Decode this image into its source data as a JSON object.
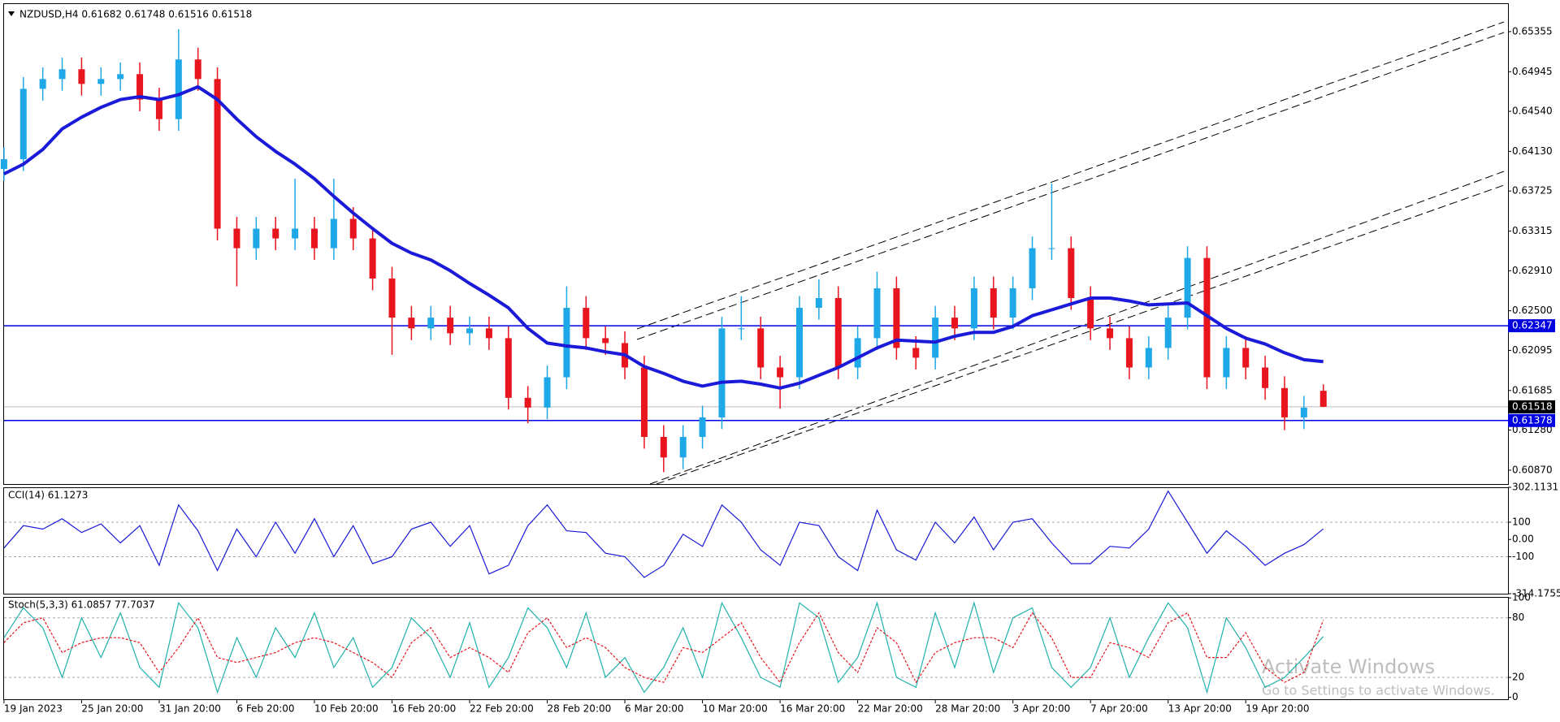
{
  "chart_data": [
    {
      "type": "candlestick",
      "title": "NZDUSD,H4  0.61682 0.61748 0.61516 0.61518",
      "categories": [
        "19 Jan 2023",
        null,
        null,
        null,
        "25 Jan 20:00",
        null,
        null,
        null,
        "31 Jan 20:00",
        null,
        null,
        null,
        "6 Feb 20:00",
        null,
        null,
        null,
        "10 Feb 20:00",
        null,
        null,
        null,
        "16 Feb 20:00",
        null,
        null,
        null,
        "22 Feb 20:00",
        null,
        null,
        null,
        "28 Feb 20:00",
        null,
        null,
        null,
        "6 Mar 20:00",
        null,
        null,
        null,
        "10 Mar 20:00",
        null,
        null,
        null,
        "16 Mar 20:00",
        null,
        null,
        null,
        "22 Mar 20:00",
        null,
        null,
        null,
        "28 Mar 20:00",
        null,
        null,
        null,
        "3 Apr 20:00",
        null,
        null,
        null,
        "7 Apr 20:00",
        null,
        null,
        null,
        "13 Apr 20:00",
        null,
        null,
        null,
        "19 Apr 20:00",
        null,
        null,
        null,
        null
      ],
      "open": [
        0.6395,
        0.6405,
        0.6477,
        0.6487,
        0.6497,
        0.6482,
        0.6487,
        0.6492,
        0.6466,
        0.6446,
        0.6507,
        0.6487,
        0.6334,
        0.6314,
        0.6334,
        0.6324,
        0.6334,
        0.6314,
        0.6344,
        0.6324,
        0.6283,
        0.6243,
        0.6232,
        0.6243,
        0.6227,
        0.6232,
        0.6222,
        0.6161,
        0.6151,
        0.6182,
        0.6253,
        0.6222,
        0.6217,
        0.6192,
        0.6121,
        0.61,
        0.6121,
        0.6141,
        0.6232,
        0.6232,
        0.6192,
        0.6182,
        0.6253,
        0.6263,
        0.6192,
        0.6222,
        0.6273,
        0.6212,
        0.6202,
        0.6243,
        0.6232,
        0.6273,
        0.6243,
        0.6273,
        0.6314,
        0.6314,
        0.6263,
        0.6232,
        0.6222,
        0.6192,
        0.6212,
        0.6243,
        0.6304,
        0.6182,
        0.6212,
        0.6192,
        0.6171,
        0.6141,
        0.61682
      ],
      "high": [
        0.6417,
        0.6489,
        0.6499,
        0.6509,
        0.6509,
        0.6499,
        0.6504,
        0.6504,
        0.6478,
        0.6538,
        0.6519,
        0.6499,
        0.6346,
        0.6346,
        0.6346,
        0.6385,
        0.6346,
        0.6385,
        0.6356,
        0.6336,
        0.6295,
        0.6255,
        0.6255,
        0.6255,
        0.6244,
        0.6244,
        0.6234,
        0.6173,
        0.6194,
        0.6275,
        0.6265,
        0.6234,
        0.6229,
        0.6204,
        0.6133,
        0.6133,
        0.6153,
        0.6244,
        0.6265,
        0.6244,
        0.6204,
        0.6265,
        0.6282,
        0.6275,
        0.6234,
        0.629,
        0.6285,
        0.6224,
        0.6255,
        0.6255,
        0.6285,
        0.6285,
        0.6285,
        0.6326,
        0.638,
        0.6326,
        0.6275,
        0.6244,
        0.6234,
        0.6224,
        0.6255,
        0.6316,
        0.6316,
        0.6224,
        0.6224,
        0.6204,
        0.6183,
        0.6163,
        0.61748
      ],
      "low": [
        0.6383,
        0.6393,
        0.6465,
        0.6475,
        0.647,
        0.647,
        0.6475,
        0.6454,
        0.6434,
        0.6434,
        0.6475,
        0.6322,
        0.6275,
        0.6302,
        0.6312,
        0.6312,
        0.6302,
        0.6302,
        0.6312,
        0.6271,
        0.6205,
        0.622,
        0.622,
        0.6215,
        0.6215,
        0.621,
        0.6149,
        0.6135,
        0.6139,
        0.617,
        0.621,
        0.6205,
        0.618,
        0.6109,
        0.6085,
        0.6088,
        0.6109,
        0.6129,
        0.622,
        0.618,
        0.615,
        0.617,
        0.6241,
        0.618,
        0.618,
        0.621,
        0.62,
        0.619,
        0.619,
        0.622,
        0.622,
        0.6231,
        0.6231,
        0.6261,
        0.6302,
        0.6251,
        0.622,
        0.621,
        0.618,
        0.618,
        0.62,
        0.6231,
        0.617,
        0.617,
        0.618,
        0.6159,
        0.6128,
        0.6129,
        0.61516
      ],
      "close": [
        0.6405,
        0.6477,
        0.6487,
        0.6497,
        0.6482,
        0.6487,
        0.6492,
        0.6466,
        0.6446,
        0.6507,
        0.6487,
        0.6334,
        0.6314,
        0.6334,
        0.6324,
        0.6334,
        0.6314,
        0.6344,
        0.6324,
        0.6283,
        0.6243,
        0.6232,
        0.6243,
        0.6227,
        0.6232,
        0.6222,
        0.6161,
        0.6151,
        0.6182,
        0.6253,
        0.6222,
        0.6217,
        0.6192,
        0.6121,
        0.61,
        0.6121,
        0.6141,
        0.6232,
        0.6232,
        0.6192,
        0.6182,
        0.6253,
        0.6263,
        0.6192,
        0.6222,
        0.6273,
        0.6212,
        0.6202,
        0.6243,
        0.6232,
        0.6273,
        0.6243,
        0.6273,
        0.6314,
        0.6314,
        0.6263,
        0.6232,
        0.6222,
        0.6192,
        0.6212,
        0.6243,
        0.6304,
        0.6182,
        0.6212,
        0.6192,
        0.6171,
        0.6141,
        0.6151,
        0.61518
      ],
      "up_color": "#1fa8e8",
      "down_color": "#e8141e",
      "ma": {
        "color": "#1a1ad8",
        "values": [
          0.639,
          0.64,
          0.6415,
          0.6436,
          0.6448,
          0.6458,
          0.6466,
          0.6469,
          0.6466,
          0.6471,
          0.6479,
          0.6466,
          0.6446,
          0.6428,
          0.6413,
          0.64,
          0.6385,
          0.6367,
          0.635,
          0.6334,
          0.6319,
          0.6309,
          0.6302,
          0.6291,
          0.6278,
          0.6266,
          0.6253,
          0.6232,
          0.6217,
          0.6214,
          0.6212,
          0.6208,
          0.6205,
          0.6193,
          0.6186,
          0.6178,
          0.6173,
          0.6177,
          0.6178,
          0.6175,
          0.6171,
          0.6176,
          0.6184,
          0.6192,
          0.6202,
          0.6212,
          0.622,
          0.6219,
          0.6218,
          0.6224,
          0.6228,
          0.6228,
          0.6234,
          0.6245,
          0.6251,
          0.6257,
          0.6263,
          0.6263,
          0.626,
          0.6256,
          0.6257,
          0.6258,
          0.6245,
          0.6232,
          0.6222,
          0.6216,
          0.6207,
          0.62,
          0.6198
        ]
      },
      "hlines": [
        {
          "value": 0.62347,
          "color": "#0000e0"
        },
        {
          "value": 0.61378,
          "color": "#0000e0"
        }
      ],
      "price_line": {
        "value": 0.61518,
        "color": "#000000"
      },
      "ylim": [
        0.6072,
        0.6562
      ],
      "yticks": [
        0.65355,
        0.64945,
        {
          "value": 0.6454,
          "label": "0.64540"
        },
        {
          "value": 0.6413,
          "label": "0.64130"
        },
        0.63725,
        0.63315,
        {
          "value": 0.6291,
          "label": "0.62910"
        },
        {
          "value": 0.625,
          "label": "0.62500"
        },
        0.62095,
        0.61685,
        {
          "value": 0.6128,
          "label": "0.61280"
        },
        {
          "value": 0.6087,
          "label": "0.60870"
        }
      ]
    },
    {
      "type": "line",
      "title": "CCI(14) 61.1273",
      "color": "#1a1ad8",
      "values": [
        -50,
        80,
        60,
        120,
        40,
        90,
        -20,
        80,
        -150,
        200,
        50,
        -180,
        60,
        -100,
        100,
        -80,
        120,
        -100,
        80,
        -140,
        -100,
        60,
        100,
        -40,
        80,
        -200,
        -150,
        80,
        200,
        50,
        40,
        -80,
        -100,
        -220,
        -150,
        30,
        -40,
        200,
        100,
        -60,
        -150,
        100,
        80,
        -100,
        -180,
        170,
        -60,
        -120,
        100,
        -20,
        130,
        -60,
        100,
        120,
        -20,
        -140,
        -140,
        -40,
        -50,
        60,
        280,
        100,
        -80,
        50,
        -40,
        -150,
        -80,
        -30,
        61.1273
      ],
      "ylim": [
        -314.1755,
        302.1131
      ],
      "yticks": [
        302.1131,
        100,
        {
          "value": 0,
          "label": "0.00"
        },
        -100,
        -314.1755
      ],
      "levels": [
        100,
        -100
      ]
    },
    {
      "type": "line",
      "title": "Stoch(5,3,3) 61.0857 77.7037",
      "series": [
        {
          "color": "#20b2aa",
          "dash": false,
          "values": [
            60,
            90,
            70,
            20,
            80,
            40,
            85,
            30,
            10,
            95,
            70,
            5,
            60,
            20,
            70,
            40,
            85,
            30,
            60,
            10,
            30,
            80,
            60,
            20,
            75,
            10,
            40,
            90,
            70,
            30,
            85,
            20,
            40,
            5,
            30,
            70,
            20,
            95,
            60,
            20,
            10,
            95,
            80,
            15,
            40,
            95,
            20,
            10,
            85,
            30,
            95,
            25,
            80,
            90,
            30,
            10,
            30,
            80,
            20,
            60,
            95,
            70,
            5,
            80,
            50,
            10,
            20,
            40,
            61.0857
          ]
        },
        {
          "color": "#e8141e",
          "dash": true,
          "values": [
            55,
            75,
            80,
            45,
            55,
            60,
            60,
            55,
            25,
            50,
            80,
            40,
            35,
            40,
            45,
            55,
            60,
            55,
            45,
            35,
            20,
            55,
            70,
            40,
            50,
            40,
            25,
            65,
            80,
            50,
            60,
            50,
            30,
            20,
            15,
            50,
            45,
            60,
            75,
            40,
            15,
            55,
            85,
            45,
            25,
            70,
            55,
            15,
            45,
            55,
            60,
            60,
            50,
            85,
            60,
            20,
            20,
            55,
            50,
            40,
            75,
            85,
            40,
            40,
            65,
            30,
            15,
            25,
            77.7037
          ]
        }
      ],
      "ylim": [
        -2,
        101
      ],
      "yticks": [
        100,
        80,
        20,
        0
      ],
      "levels": [
        80,
        20
      ]
    }
  ],
  "watermark": {
    "title": "Activate Windows",
    "subtitle": "Go to Settings to activate Windows."
  }
}
